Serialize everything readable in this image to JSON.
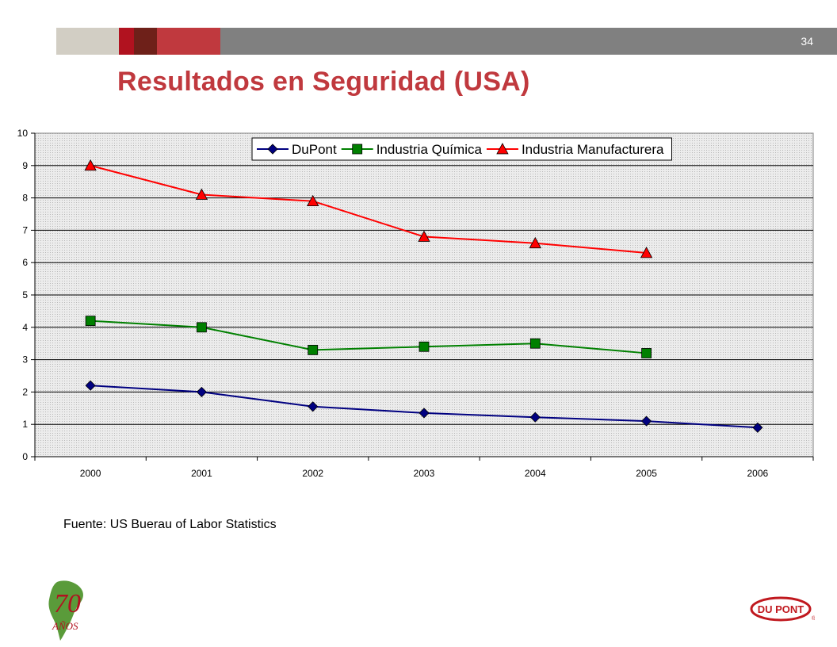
{
  "header": {
    "page_number": "34",
    "title": "Resultados en Seguridad (USA)"
  },
  "colors": {
    "title": "#c0393e",
    "bar_beige": "#d2cec4",
    "bar_red": "#b1121f",
    "bar_maroon": "#6e2019",
    "bar_rose": "#c0393e",
    "bar_gray": "#808080",
    "plot_bg": "#e8e8e8"
  },
  "chart_data": {
    "type": "line",
    "x": [
      "2000",
      "2001",
      "2002",
      "2003",
      "2004",
      "2005",
      "2006"
    ],
    "ylim": [
      0,
      10
    ],
    "yticks": [
      "0",
      "1",
      "2",
      "3",
      "4",
      "5",
      "6",
      "7",
      "8",
      "9",
      "10"
    ],
    "grid": true,
    "legend_position": "top",
    "series": [
      {
        "name": "DuPont",
        "color": "#000080",
        "marker": "diamond",
        "values": [
          2.2,
          2.0,
          1.55,
          1.35,
          1.22,
          1.1,
          0.9
        ]
      },
      {
        "name": "Industria Química",
        "color": "#008000",
        "marker": "square",
        "values": [
          4.2,
          4.0,
          3.3,
          3.4,
          3.5,
          3.2,
          null
        ]
      },
      {
        "name": "Industria Manufacturera",
        "color": "#ff0000",
        "marker": "triangle",
        "values": [
          9.0,
          8.1,
          7.9,
          6.8,
          6.6,
          6.3,
          null
        ]
      }
    ]
  },
  "footer": {
    "source": "Fuente: US Buerau of Labor Statistics"
  },
  "logos": {
    "anniversary_number": "70",
    "anniversary_word": "AÑOS",
    "brand": "DU PONT"
  }
}
